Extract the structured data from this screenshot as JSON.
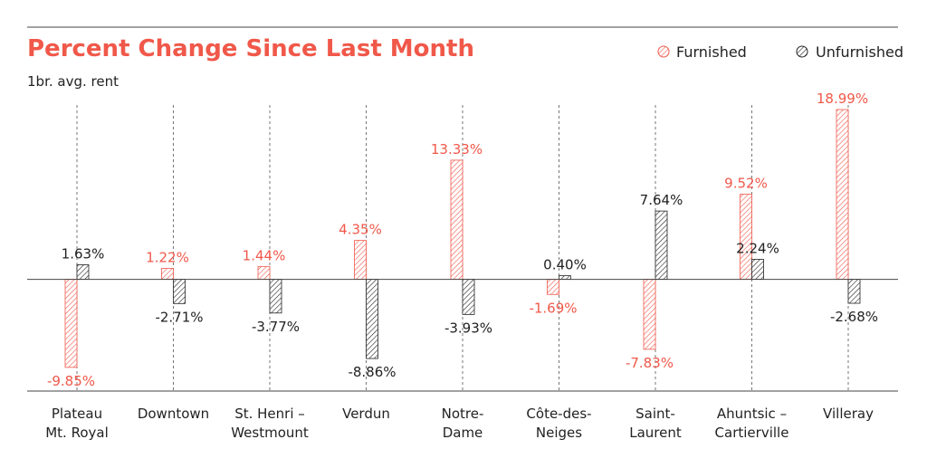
{
  "chart_data": {
    "type": "bar",
    "title": "Percent Change Since Last Month",
    "subtitle": "1br. avg. rent",
    "categories": [
      [
        "Plateau",
        "Mt. Royal"
      ],
      [
        "Downtown"
      ],
      [
        "St. Henri –",
        "Westmount"
      ],
      [
        "Verdun"
      ],
      [
        "Notre-",
        "Dame"
      ],
      [
        "Côte-des-",
        "Neiges"
      ],
      [
        "Saint-",
        "Laurent"
      ],
      [
        "Ahuntsic –",
        "Cartierville"
      ],
      [
        "Villeray"
      ]
    ],
    "series": [
      {
        "name": "Furnished",
        "values": [
          -9.85,
          1.22,
          1.44,
          4.35,
          13.33,
          -1.69,
          -7.83,
          9.52,
          18.99
        ],
        "labels": [
          "-9.85%",
          "1.22%",
          "1.44%",
          "4.35%",
          "13.33%",
          "-1.69%",
          "-7.83%",
          "9.52%",
          "18.99%"
        ],
        "color": "#f0584a",
        "hatch": "red"
      },
      {
        "name": "Unfurnished",
        "values": [
          1.63,
          -2.71,
          -3.77,
          -8.86,
          -3.93,
          0.4,
          7.64,
          2.24,
          -2.68
        ],
        "labels": [
          "1.63%",
          "-2.71%",
          "-3.77%",
          "-8.86%",
          "-3.93%",
          "0.40%",
          "7.64%",
          "2.24%",
          "-2.68%"
        ],
        "color": "#222222",
        "hatch": "black"
      }
    ],
    "ylim": [
      -12.5,
      19.5
    ],
    "legend_position": "top-right",
    "grid": "vertical dashed category lines",
    "title_color": "#f0584a"
  }
}
